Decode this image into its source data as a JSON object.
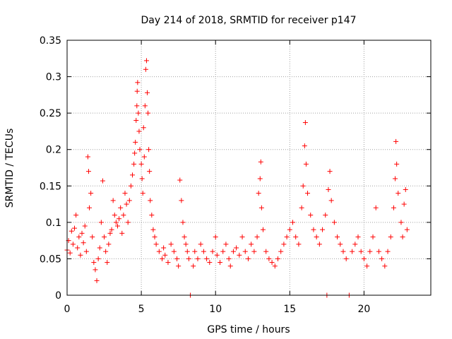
{
  "chart_data": {
    "type": "scatter",
    "title": "Day 214 of 2018, SRMTID for receiver p147",
    "xlabel": "GPS time / hours",
    "ylabel": "SRMTID / TECUs",
    "xlim": [
      0,
      24.5
    ],
    "ylim": [
      0,
      0.35
    ],
    "xticks": [
      0,
      5,
      10,
      15,
      20
    ],
    "xtick_labels": [
      "0",
      "5",
      "10",
      "15",
      "20"
    ],
    "yticks": [
      0,
      0.05,
      0.1,
      0.15,
      0.2,
      0.25,
      0.3,
      0.35
    ],
    "ytick_labels": [
      "0",
      "0.05",
      "0.1",
      "0.15",
      "0.2",
      "0.25",
      "0.3",
      "0.35"
    ],
    "grid": true,
    "marker": "+",
    "color": "#ff0000",
    "series": [
      {
        "name": "SRMTID",
        "points": [
          [
            0.0,
            0.062
          ],
          [
            0.1,
            0.075
          ],
          [
            0.2,
            0.058
          ],
          [
            0.3,
            0.088
          ],
          [
            0.4,
            0.07
          ],
          [
            0.5,
            0.092
          ],
          [
            0.6,
            0.11
          ],
          [
            0.7,
            0.065
          ],
          [
            0.8,
            0.08
          ],
          [
            0.9,
            0.055
          ],
          [
            1.0,
            0.085
          ],
          [
            1.1,
            0.072
          ],
          [
            1.2,
            0.095
          ],
          [
            1.3,
            0.06
          ],
          [
            1.4,
            0.19
          ],
          [
            1.45,
            0.17
          ],
          [
            1.5,
            0.12
          ],
          [
            1.6,
            0.14
          ],
          [
            1.7,
            0.08
          ],
          [
            1.8,
            0.045
          ],
          [
            1.9,
            0.035
          ],
          [
            2.0,
            0.02
          ],
          [
            2.1,
            0.05
          ],
          [
            2.2,
            0.065
          ],
          [
            2.3,
            0.1
          ],
          [
            2.4,
            0.157
          ],
          [
            2.5,
            0.08
          ],
          [
            2.6,
            0.06
          ],
          [
            2.7,
            0.045
          ],
          [
            2.8,
            0.07
          ],
          [
            2.9,
            0.085
          ],
          [
            3.0,
            0.09
          ],
          [
            3.1,
            0.13
          ],
          [
            3.2,
            0.11
          ],
          [
            3.3,
            0.1
          ],
          [
            3.4,
            0.095
          ],
          [
            3.5,
            0.105
          ],
          [
            3.6,
            0.12
          ],
          [
            3.7,
            0.085
          ],
          [
            3.8,
            0.11
          ],
          [
            3.9,
            0.14
          ],
          [
            4.0,
            0.125
          ],
          [
            4.1,
            0.1
          ],
          [
            4.2,
            0.13
          ],
          [
            4.3,
            0.15
          ],
          [
            4.4,
            0.165
          ],
          [
            4.5,
            0.18
          ],
          [
            4.55,
            0.195
          ],
          [
            4.6,
            0.21
          ],
          [
            4.65,
            0.24
          ],
          [
            4.7,
            0.26
          ],
          [
            4.72,
            0.28
          ],
          [
            4.75,
            0.292
          ],
          [
            4.8,
            0.25
          ],
          [
            4.85,
            0.225
          ],
          [
            4.9,
            0.2
          ],
          [
            5.0,
            0.18
          ],
          [
            5.05,
            0.16
          ],
          [
            5.1,
            0.14
          ],
          [
            5.15,
            0.23
          ],
          [
            5.2,
            0.19
          ],
          [
            5.25,
            0.26
          ],
          [
            5.3,
            0.31
          ],
          [
            5.35,
            0.322
          ],
          [
            5.4,
            0.278
          ],
          [
            5.45,
            0.25
          ],
          [
            5.5,
            0.2
          ],
          [
            5.55,
            0.17
          ],
          [
            5.6,
            0.13
          ],
          [
            5.7,
            0.11
          ],
          [
            5.8,
            0.09
          ],
          [
            5.9,
            0.08
          ],
          [
            6.0,
            0.07
          ],
          [
            6.2,
            0.06
          ],
          [
            6.4,
            0.05
          ],
          [
            6.5,
            0.065
          ],
          [
            6.6,
            0.055
          ],
          [
            6.8,
            0.045
          ],
          [
            7.0,
            0.07
          ],
          [
            7.2,
            0.06
          ],
          [
            7.4,
            0.05
          ],
          [
            7.5,
            0.04
          ],
          [
            7.6,
            0.158
          ],
          [
            7.7,
            0.13
          ],
          [
            7.8,
            0.1
          ],
          [
            7.9,
            0.08
          ],
          [
            8.0,
            0.07
          ],
          [
            8.1,
            0.06
          ],
          [
            8.2,
            0.05
          ],
          [
            8.3,
            0.0
          ],
          [
            8.5,
            0.04
          ],
          [
            8.6,
            0.06
          ],
          [
            8.8,
            0.05
          ],
          [
            9.0,
            0.07
          ],
          [
            9.2,
            0.06
          ],
          [
            9.4,
            0.05
          ],
          [
            9.6,
            0.045
          ],
          [
            9.8,
            0.06
          ],
          [
            10.0,
            0.08
          ],
          [
            10.1,
            0.055
          ],
          [
            10.3,
            0.045
          ],
          [
            10.5,
            0.06
          ],
          [
            10.7,
            0.07
          ],
          [
            10.9,
            0.05
          ],
          [
            11.0,
            0.04
          ],
          [
            11.2,
            0.06
          ],
          [
            11.4,
            0.065
          ],
          [
            11.6,
            0.055
          ],
          [
            11.8,
            0.08
          ],
          [
            12.0,
            0.06
          ],
          [
            12.2,
            0.05
          ],
          [
            12.4,
            0.07
          ],
          [
            12.6,
            0.06
          ],
          [
            12.8,
            0.08
          ],
          [
            12.9,
            0.14
          ],
          [
            13.0,
            0.16
          ],
          [
            13.05,
            0.183
          ],
          [
            13.1,
            0.12
          ],
          [
            13.2,
            0.09
          ],
          [
            13.4,
            0.06
          ],
          [
            13.6,
            0.05
          ],
          [
            13.8,
            0.045
          ],
          [
            14.0,
            0.04
          ],
          [
            14.2,
            0.05
          ],
          [
            14.4,
            0.06
          ],
          [
            14.6,
            0.07
          ],
          [
            14.8,
            0.08
          ],
          [
            15.0,
            0.09
          ],
          [
            15.2,
            0.1
          ],
          [
            15.4,
            0.08
          ],
          [
            15.6,
            0.07
          ],
          [
            15.8,
            0.12
          ],
          [
            15.9,
            0.15
          ],
          [
            16.0,
            0.205
          ],
          [
            16.05,
            0.237
          ],
          [
            16.1,
            0.18
          ],
          [
            16.2,
            0.14
          ],
          [
            16.4,
            0.11
          ],
          [
            16.6,
            0.09
          ],
          [
            16.8,
            0.08
          ],
          [
            17.0,
            0.07
          ],
          [
            17.2,
            0.09
          ],
          [
            17.4,
            0.11
          ],
          [
            17.5,
            0.0
          ],
          [
            17.6,
            0.145
          ],
          [
            17.7,
            0.17
          ],
          [
            17.8,
            0.13
          ],
          [
            18.0,
            0.1
          ],
          [
            18.2,
            0.08
          ],
          [
            18.4,
            0.07
          ],
          [
            18.6,
            0.06
          ],
          [
            18.8,
            0.05
          ],
          [
            19.0,
            0.0
          ],
          [
            19.2,
            0.06
          ],
          [
            19.4,
            0.07
          ],
          [
            19.6,
            0.08
          ],
          [
            19.8,
            0.06
          ],
          [
            20.0,
            0.05
          ],
          [
            20.2,
            0.04
          ],
          [
            20.4,
            0.06
          ],
          [
            20.6,
            0.08
          ],
          [
            20.8,
            0.12
          ],
          [
            21.0,
            0.06
          ],
          [
            21.2,
            0.05
          ],
          [
            21.4,
            0.04
          ],
          [
            21.6,
            0.06
          ],
          [
            21.8,
            0.08
          ],
          [
            22.0,
            0.12
          ],
          [
            22.1,
            0.16
          ],
          [
            22.15,
            0.211
          ],
          [
            22.2,
            0.18
          ],
          [
            22.3,
            0.14
          ],
          [
            22.5,
            0.1
          ],
          [
            22.6,
            0.08
          ],
          [
            22.7,
            0.125
          ],
          [
            22.8,
            0.145
          ],
          [
            22.9,
            0.09
          ]
        ]
      }
    ]
  }
}
